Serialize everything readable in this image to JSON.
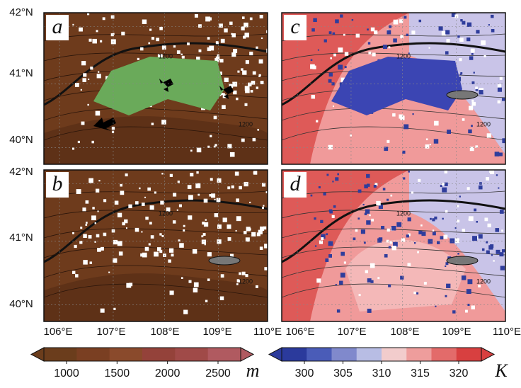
{
  "panels": [
    {
      "label": "a",
      "contour_labels": [
        "1200",
        "1200"
      ]
    },
    {
      "label": "b",
      "contour_labels": [
        "1200",
        "1200"
      ]
    },
    {
      "label": "c",
      "contour_labels": [
        "1200",
        "1200"
      ]
    },
    {
      "label": "d",
      "contour_labels": [
        "1200",
        "1200"
      ]
    }
  ],
  "lat_labels": [
    "42°N",
    "41°N",
    "40°N"
  ],
  "lon_labels": [
    "106°E",
    "107°E",
    "108°E",
    "109°E",
    "110°E"
  ],
  "colorbars": [
    {
      "ticks": [
        1000,
        1500,
        2000,
        2500
      ],
      "unit": "m"
    },
    {
      "ticks": [
        300,
        305,
        310,
        315,
        320
      ],
      "unit": "K"
    }
  ]
}
